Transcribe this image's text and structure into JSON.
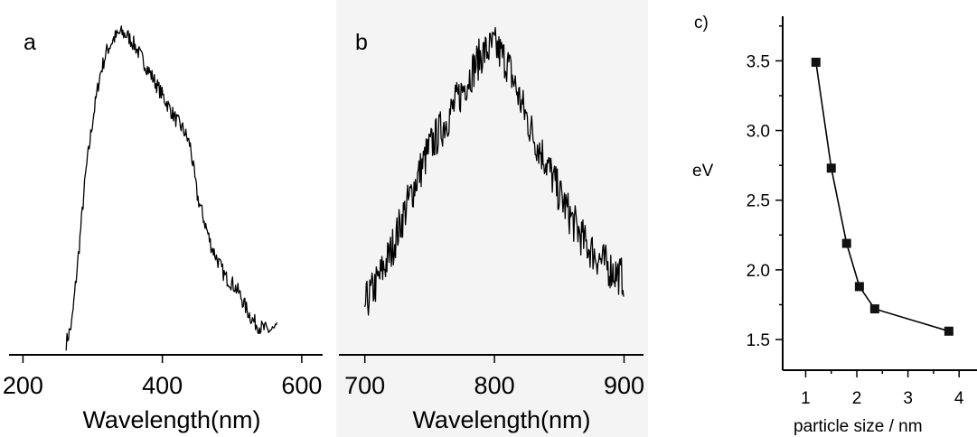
{
  "chart_data": [
    {
      "panel": "a",
      "type": "line",
      "xlabel": "Wavelength(nm)",
      "ylabel": "",
      "xlim": [
        180,
        630
      ],
      "ylim": [
        0,
        1
      ],
      "xticks": [
        200,
        400,
        600
      ],
      "series": [
        {
          "x": [
            262,
            270,
            280,
            290,
            300,
            310,
            320,
            330,
            340,
            350,
            360,
            370,
            380,
            390,
            400,
            410,
            420,
            430,
            440,
            450,
            460,
            470,
            480,
            490,
            500,
            510,
            520,
            530,
            540,
            550,
            560,
            565
          ],
          "y": [
            0.01,
            0.07,
            0.3,
            0.55,
            0.72,
            0.86,
            0.94,
            0.98,
            1.0,
            0.99,
            0.96,
            0.92,
            0.88,
            0.84,
            0.8,
            0.76,
            0.72,
            0.69,
            0.64,
            0.48,
            0.4,
            0.32,
            0.27,
            0.22,
            0.2,
            0.17,
            0.12,
            0.08,
            0.06,
            0.05,
            0.05,
            0.05
          ]
        }
      ]
    },
    {
      "panel": "b",
      "type": "line",
      "xlabel": "Wavelength(nm)",
      "ylabel": "",
      "xlim": [
        680,
        915
      ],
      "ylim": [
        0,
        1
      ],
      "xticks": [
        700,
        800,
        900
      ],
      "series": [
        {
          "x": [
            700,
            710,
            720,
            730,
            740,
            750,
            760,
            770,
            780,
            790,
            800,
            810,
            820,
            830,
            840,
            850,
            860,
            870,
            880,
            890,
            900
          ],
          "y": [
            0.04,
            0.12,
            0.22,
            0.35,
            0.47,
            0.58,
            0.65,
            0.73,
            0.82,
            0.9,
            0.93,
            0.87,
            0.74,
            0.62,
            0.53,
            0.42,
            0.33,
            0.25,
            0.2,
            0.16,
            0.13
          ]
        }
      ]
    },
    {
      "panel": "c)",
      "type": "line",
      "xlabel": "particle size / nm",
      "ylabel": "eV",
      "xlim": [
        0.55,
        4.35
      ],
      "ylim": [
        1.28,
        3.82
      ],
      "xticks": [
        1,
        2,
        3,
        4
      ],
      "yticks": [
        1.5,
        2.0,
        2.5,
        3.0,
        3.5
      ],
      "ytick_labels": [
        "1.5",
        "2.0",
        "2.5",
        "3.0",
        "3.5"
      ],
      "series": [
        {
          "x": [
            1.2,
            1.5,
            1.8,
            2.05,
            2.35,
            3.8
          ],
          "y": [
            3.49,
            2.73,
            2.19,
            1.88,
            1.72,
            1.56
          ]
        }
      ]
    }
  ],
  "labels": {
    "panel_a": "a",
    "panel_b": "b",
    "panel_c": "c)",
    "xlabel_a": "Wavelength(nm)",
    "xlabel_b": "Wavelength(nm)",
    "xlabel_c": "particle size / nm",
    "ylabel_c": "eV"
  }
}
